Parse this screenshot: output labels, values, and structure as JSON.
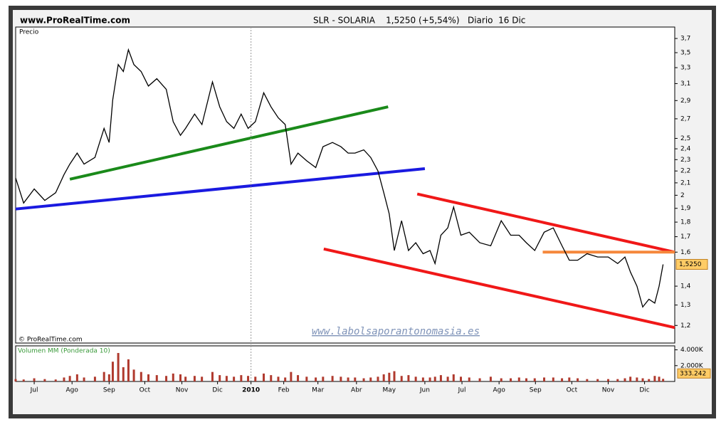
{
  "chart_data": [
    {
      "type": "line",
      "log_scale": true,
      "source": "www.ProRealTime.com",
      "title": "SLR - SOLARIA    1,5250 (+5,54%)   Diario  16 Dic",
      "ylabel": "Precio",
      "copyright": "© ProRealTime.com",
      "watermark": "www.labolsaporantonomasia.es",
      "color": "#000000",
      "xlim": [
        0,
        18.12
      ],
      "ylim": [
        1.12,
        3.87
      ],
      "yticks": [
        {
          "value": 3.7,
          "label": "3,7"
        },
        {
          "value": 3.5,
          "label": "3,5"
        },
        {
          "value": 3.3,
          "label": "3,3"
        },
        {
          "value": 3.1,
          "label": "3,1"
        },
        {
          "value": 2.9,
          "label": "2,9"
        },
        {
          "value": 2.7,
          "label": "2,7"
        },
        {
          "value": 2.5,
          "label": "2,5"
        },
        {
          "value": 2.4,
          "label": "2,4"
        },
        {
          "value": 2.3,
          "label": "2,3"
        },
        {
          "value": 2.2,
          "label": "2,2"
        },
        {
          "value": 2.1,
          "label": "2,1"
        },
        2,
        {
          "value": 1.9,
          "label": "1,9"
        },
        {
          "value": 1.8,
          "label": "1,8"
        },
        {
          "value": 1.7,
          "label": "1,7"
        },
        {
          "value": 1.6,
          "label": "1,6"
        },
        {
          "value": 1.4,
          "label": "1,4"
        },
        {
          "value": 1.3,
          "label": "1,3"
        },
        {
          "value": 1.2,
          "label": "1,2"
        }
      ],
      "current": {
        "value": 1.525,
        "label": "1,5250"
      },
      "x": [
        0,
        0.22,
        0.51,
        0.8,
        1.1,
        1.33,
        1.49,
        1.69,
        1.88,
        2.18,
        2.43,
        2.57,
        2.67,
        2.82,
        2.96,
        3.1,
        3.25,
        3.45,
        3.65,
        3.88,
        4.14,
        4.33,
        4.53,
        4.67,
        4.92,
        5.12,
        5.41,
        5.61,
        5.8,
        6.0,
        6.2,
        6.39,
        6.59,
        6.82,
        7.02,
        7.22,
        7.41,
        7.57,
        7.76,
        8.0,
        8.25,
        8.45,
        8.71,
        8.94,
        9.14,
        9.33,
        9.57,
        9.76,
        9.96,
        10.12,
        10.27,
        10.41,
        10.61,
        10.8,
        11.0,
        11.2,
        11.39,
        11.53,
        11.69,
        11.88,
        12.04,
        12.24,
        12.47,
        12.76,
        13.06,
        13.35,
        13.61,
        13.84,
        14.04,
        14.27,
        14.53,
        14.78,
        15.02,
        15.22,
        15.45,
        15.71,
        16.0,
        16.29,
        16.55,
        16.75,
        16.9,
        17.08,
        17.24,
        17.41,
        17.57,
        17.69,
        17.8
      ],
      "values": [
        2.14,
        1.94,
        2.05,
        1.96,
        2.02,
        2.17,
        2.26,
        2.36,
        2.26,
        2.32,
        2.6,
        2.46,
        2.91,
        3.34,
        3.25,
        3.54,
        3.34,
        3.25,
        3.07,
        3.16,
        3.03,
        2.67,
        2.53,
        2.6,
        2.75,
        2.64,
        3.12,
        2.83,
        2.67,
        2.6,
        2.75,
        2.6,
        2.67,
        2.99,
        2.83,
        2.71,
        2.64,
        2.26,
        2.36,
        2.29,
        2.23,
        2.42,
        2.46,
        2.42,
        2.36,
        2.36,
        2.39,
        2.32,
        2.2,
        2.02,
        1.86,
        1.61,
        1.81,
        1.61,
        1.66,
        1.59,
        1.61,
        1.53,
        1.71,
        1.76,
        1.91,
        1.71,
        1.73,
        1.66,
        1.64,
        1.81,
        1.71,
        1.71,
        1.66,
        1.61,
        1.73,
        1.76,
        1.64,
        1.55,
        1.55,
        1.59,
        1.57,
        1.57,
        1.53,
        1.57,
        1.48,
        1.4,
        1.29,
        1.33,
        1.31,
        1.4,
        1.525
      ],
      "trendlines": [
        {
          "color": "#1a8a1a",
          "x": [
            1.49,
            10.24
          ],
          "values": [
            2.13,
            2.83
          ]
        },
        {
          "color": "#1a1ae0",
          "x": [
            0,
            11.25
          ],
          "values": [
            1.895,
            2.22
          ]
        },
        {
          "color": "#f01818",
          "x": [
            11.04,
            18.12
          ],
          "values": [
            2.01,
            1.6
          ]
        },
        {
          "color": "#f01818",
          "x": [
            8.47,
            18.12
          ],
          "values": [
            1.62,
            1.19
          ]
        },
        {
          "color": "#f5873c",
          "x": [
            14.49,
            18.12
          ],
          "values": [
            1.6,
            1.6
          ]
        }
      ]
    },
    {
      "type": "bar",
      "ylabel": "Volumen MM (Ponderada 10)",
      "color": "#b03a2e",
      "xlim": [
        0,
        18.12
      ],
      "ylim": [
        0,
        4500
      ],
      "yticks": [
        {
          "value": 4000,
          "label": "4.000K"
        },
        {
          "value": 2000,
          "label": "2.000K"
        }
      ],
      "current": {
        "value": 333.242,
        "label": "333.242"
      },
      "xticks": [
        {
          "value": 0.51,
          "label": "Jul"
        },
        {
          "value": 1.55,
          "label": "Ago"
        },
        {
          "value": 2.57,
          "label": "Sep"
        },
        {
          "value": 3.55,
          "label": "Oct"
        },
        {
          "value": 4.57,
          "label": "Nov"
        },
        {
          "value": 5.55,
          "label": "Dic"
        },
        {
          "value": 6.47,
          "label": "2010"
        },
        {
          "value": 7.37,
          "label": "Feb"
        },
        {
          "value": 8.31,
          "label": "Mar"
        },
        {
          "value": 9.37,
          "label": "Abr"
        },
        {
          "value": 10.27,
          "label": "May"
        },
        {
          "value": 11.25,
          "label": "Jun"
        },
        {
          "value": 12.27,
          "label": "Jul"
        },
        {
          "value": 13.29,
          "label": "Ago"
        },
        {
          "value": 14.29,
          "label": "Sep"
        },
        {
          "value": 15.29,
          "label": "Oct"
        },
        {
          "value": 16.29,
          "label": "Nov"
        },
        {
          "value": 17.29,
          "label": "Dic"
        }
      ],
      "x": [
        0,
        0.22,
        0.51,
        0.8,
        1.1,
        1.33,
        1.49,
        1.69,
        1.88,
        2.18,
        2.43,
        2.57,
        2.67,
        2.82,
        2.96,
        3.1,
        3.25,
        3.45,
        3.65,
        3.88,
        4.14,
        4.33,
        4.53,
        4.67,
        4.92,
        5.12,
        5.41,
        5.61,
        5.8,
        6.0,
        6.2,
        6.39,
        6.59,
        6.82,
        7.02,
        7.22,
        7.41,
        7.57,
        7.76,
        8.0,
        8.25,
        8.45,
        8.71,
        8.94,
        9.14,
        9.33,
        9.57,
        9.76,
        9.96,
        10.12,
        10.27,
        10.41,
        10.61,
        10.8,
        11.0,
        11.2,
        11.39,
        11.53,
        11.69,
        11.88,
        12.04,
        12.24,
        12.47,
        12.76,
        13.06,
        13.35,
        13.61,
        13.84,
        14.04,
        14.27,
        14.53,
        14.78,
        15.02,
        15.22,
        15.45,
        15.71,
        16.0,
        16.29,
        16.55,
        16.75,
        16.9,
        17.08,
        17.24,
        17.41,
        17.57,
        17.69,
        17.8
      ],
      "values": [
        300,
        250,
        400,
        300,
        250,
        500,
        700,
        900,
        500,
        600,
        1200,
        900,
        2500,
        3600,
        1800,
        2800,
        1500,
        1200,
        900,
        800,
        700,
        1000,
        900,
        600,
        700,
        600,
        1200,
        800,
        700,
        600,
        800,
        700,
        600,
        1000,
        800,
        600,
        500,
        1200,
        800,
        600,
        500,
        600,
        700,
        600,
        500,
        500,
        400,
        500,
        600,
        900,
        1100,
        1300,
        700,
        800,
        600,
        500,
        500,
        600,
        800,
        600,
        900,
        600,
        500,
        400,
        600,
        400,
        400,
        500,
        400,
        400,
        500,
        500,
        400,
        500,
        400,
        300,
        300,
        300,
        300,
        400,
        600,
        500,
        400,
        300,
        700,
        600,
        333.242
      ]
    }
  ]
}
